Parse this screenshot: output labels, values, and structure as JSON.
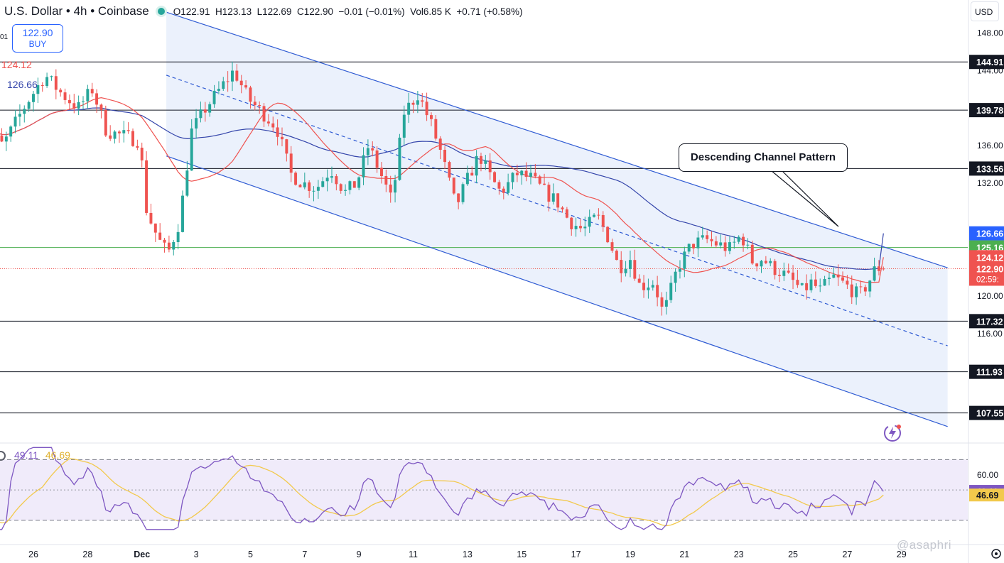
{
  "header": {
    "title": "U.S. Dollar • 4h • Coinbase",
    "ohlc": {
      "o_label": "O",
      "o": "122.91",
      "h_label": "H",
      "h": "123.13",
      "l_label": "L",
      "l": "122.69",
      "c_label": "C",
      "c": "122.90",
      "change": "−0.01 (−0.01%)",
      "vol_label": "Vol",
      "vol": "6.85 K",
      "vol_change": "+0.71 (+0.58%)"
    },
    "status_dot_color": "#26a69a"
  },
  "buy_box": {
    "price": "122.90",
    "label": "BUY"
  },
  "left_cut_label": "01",
  "ma_labels": {
    "red": "124.12",
    "blue": "126.66"
  },
  "currency_button": "USD",
  "annotation": "Descending Channel Pattern",
  "watermark": "@asaphri",
  "rsi": {
    "value": "49.11",
    "ma_value": "46.69"
  },
  "colors": {
    "up": "#26a69a",
    "down": "#ef5350",
    "ma_red": "#ef5350",
    "ma_blue": "#3344aa",
    "channel": "#2f5bd3",
    "channel_fill": "#e8eefc",
    "rsi_line": "#7e57c2",
    "rsi_ma": "#f2c94c",
    "rsi_bg": "#f0ebfa",
    "hline_green": "#4caf50",
    "price_line": "#ef5350"
  },
  "chart_data": {
    "type": "candlestick",
    "timeframe": "4h",
    "y_axis": {
      "range": [
        104.5,
        151.5
      ],
      "ticks": [
        148.0,
        144.0,
        136.0,
        132.0,
        120.0,
        116.0
      ],
      "tick_labels": [
        "148.00",
        "144.00",
        "136.00",
        "132.00",
        "120.00",
        "116.00"
      ]
    },
    "x_axis": {
      "labels": [
        {
          "label": "26",
          "day": 26
        },
        {
          "label": "28",
          "day": 28
        },
        {
          "label": "Dec",
          "day": 30
        },
        {
          "label": "3",
          "day": 32
        },
        {
          "label": "5",
          "day": 34
        },
        {
          "label": "7",
          "day": 36
        },
        {
          "label": "9",
          "day": 38
        },
        {
          "label": "11",
          "day": 40
        },
        {
          "label": "13",
          "day": 42
        },
        {
          "label": "15",
          "day": 44
        },
        {
          "label": "17",
          "day": 46
        },
        {
          "label": "19",
          "day": 48
        },
        {
          "label": "21",
          "day": 50
        },
        {
          "label": "23",
          "day": 52
        },
        {
          "label": "25",
          "day": 54
        },
        {
          "label": "27",
          "day": 56
        },
        {
          "label": "29",
          "day": 58
        }
      ]
    },
    "horizontal_levels": [
      {
        "value": 144.91,
        "label": "144.91",
        "style": "black"
      },
      {
        "value": 139.78,
        "label": "139.78",
        "style": "black"
      },
      {
        "value": 133.56,
        "label": "133.56",
        "style": "black"
      },
      {
        "value": 117.32,
        "label": "117.32",
        "style": "black"
      },
      {
        "value": 111.93,
        "label": "111.93",
        "style": "black"
      },
      {
        "value": 107.55,
        "label": "107.55",
        "style": "black"
      },
      {
        "value": 125.16,
        "label": "125.16",
        "style": "green"
      }
    ],
    "price_tags": [
      {
        "value": 126.66,
        "label": "126.66",
        "color": "#2962ff"
      },
      {
        "value": 125.16,
        "label": "125.16",
        "color": "#4caf50"
      },
      {
        "value": 124.12,
        "label": "124.12",
        "color": "#ef5350"
      },
      {
        "value": 122.9,
        "label": "122.90",
        "color": "#ef5350",
        "sub": "02:59:"
      }
    ],
    "channel": {
      "upper": [
        [
          30.9,
          150.2
        ],
        [
          59.7,
          123.0
        ]
      ],
      "middle": [
        [
          30.9,
          143.5
        ],
        [
          59.7,
          114.7
        ]
      ],
      "lower": [
        [
          30.9,
          134.9
        ],
        [
          59.7,
          106.1
        ]
      ]
    },
    "series": [
      {
        "name": "Price",
        "type": "candles"
      },
      {
        "name": "MA 124.12",
        "type": "line"
      },
      {
        "name": "MA 126.66",
        "type": "line"
      }
    ],
    "rsi_panel": {
      "range": [
        15,
        80
      ],
      "ticks": [
        60
      ],
      "tick_labels": [
        "60.00"
      ],
      "bands": [
        30,
        70
      ],
      "mid": 50,
      "last_rsi": 49.11,
      "last_ma": 46.69
    }
  }
}
